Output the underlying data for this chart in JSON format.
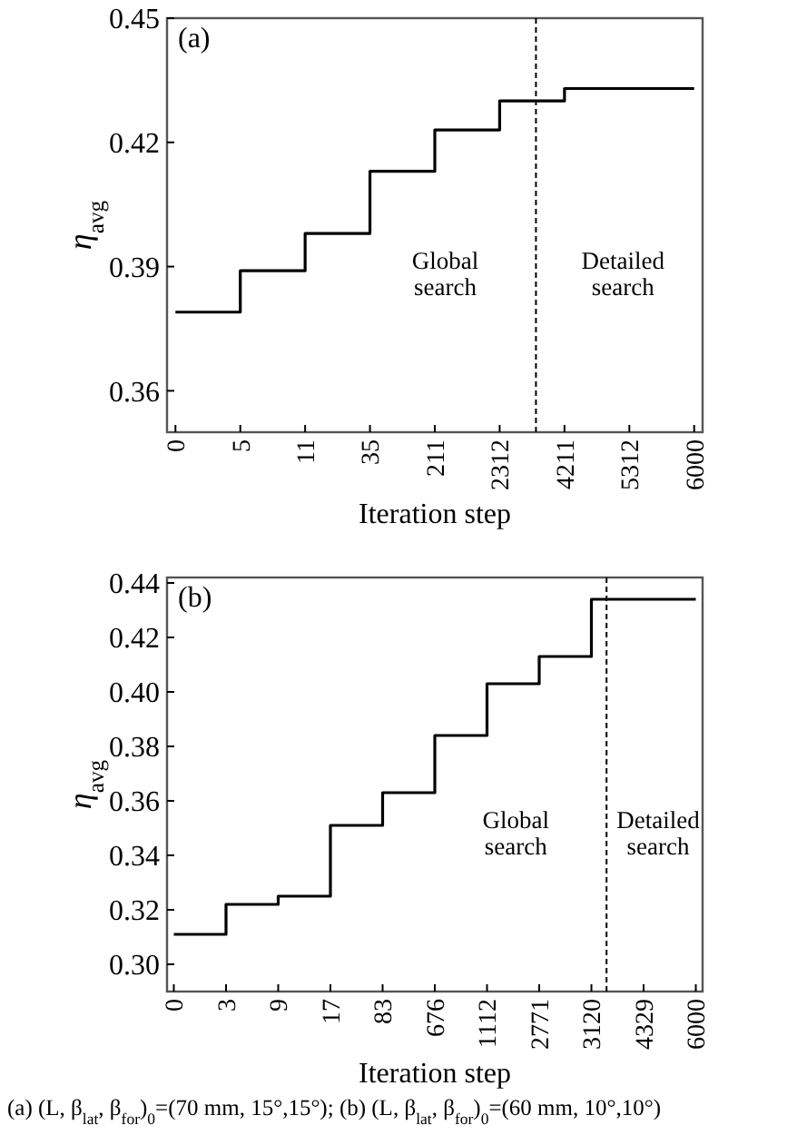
{
  "chart_data": [
    {
      "type": "step",
      "title": "(a)",
      "xlabel": "Iteration step",
      "ylabel": "η$_{avg}$",
      "ylim": [
        0.35,
        0.45
      ],
      "categories": [
        "0",
        "5",
        "11",
        "35",
        "211",
        "2312",
        "4211",
        "5312",
        "6000"
      ],
      "yticks": [
        0.36,
        0.39,
        0.42,
        0.45
      ],
      "series": [
        {
          "color": "#000000",
          "values": [
            0.379,
            0.389,
            0.398,
            0.413,
            0.423,
            0.43,
            0.433,
            0.433,
            0.433
          ]
        }
      ],
      "annotations": [
        "Global search",
        "Detailed search"
      ],
      "grid": false,
      "marker": "none",
      "line_style": "solid"
    },
    {
      "type": "step",
      "title": "(b)",
      "xlabel": "Iteration step",
      "ylabel": "η$_{avg}$",
      "ylim": [
        0.29,
        0.442
      ],
      "categories": [
        "0",
        "3",
        "9",
        "17",
        "83",
        "676",
        "1112",
        "2771",
        "3120",
        "4329",
        "6000"
      ],
      "yticks": [
        {
          "value": 0.3,
          "label": "0.30"
        },
        0.32,
        0.34,
        0.36,
        0.38,
        {
          "value": 0.4,
          "label": "0.40"
        },
        0.42,
        0.44
      ],
      "series": [
        {
          "color": "#000000",
          "values": [
            0.311,
            0.322,
            0.325,
            0.351,
            0.363,
            0.384,
            0.403,
            0.413,
            0.434,
            0.434,
            0.434
          ]
        }
      ],
      "annotations": [
        "Global search",
        "Detailed search",
        "(a) (L, β$_{lat}$, β$_{for}$)$_{0}$=(70 mm, 15°,15°); (b) (L, β$_{lat}$, β$_{for}$)$_{0}$=(60 mm, 10°,10°)"
      ],
      "grid": false,
      "marker": "none",
      "line_style": "solid"
    }
  ]
}
